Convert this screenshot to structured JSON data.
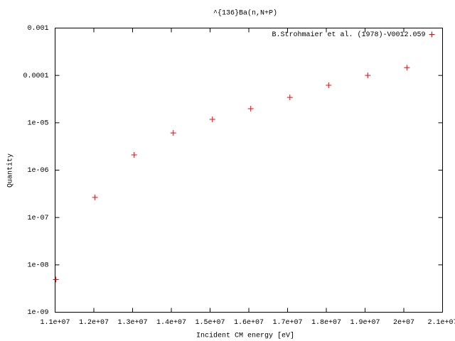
{
  "chart_data": {
    "type": "scatter",
    "title": "^{136}Ba(n,N+P)",
    "x_label": "Incident CM energy [eV]",
    "y_label": "Quantity",
    "log_y": true,
    "legend_position": "top-right",
    "xlim": [
      11000000,
      21000000
    ],
    "ylim": [
      1e-09,
      0.001
    ],
    "xticks": [
      {
        "value": 11000000,
        "label": "1.1e+07"
      },
      {
        "value": 12000000,
        "label": "1.2e+07"
      },
      {
        "value": 13000000,
        "label": "1.3e+07"
      },
      {
        "value": 14000000,
        "label": "1.4e+07"
      },
      {
        "value": 15000000,
        "label": "1.5e+07"
      },
      {
        "value": 16000000,
        "label": "1.6e+07"
      },
      {
        "value": 17000000,
        "label": "1.7e+07"
      },
      {
        "value": 18000000,
        "label": "1.8e+07"
      },
      {
        "value": 19000000,
        "label": "1.9e+07"
      },
      {
        "value": 20000000,
        "label": "2e+07"
      },
      {
        "value": 21000000,
        "label": "2.1e+07"
      }
    ],
    "yticks": [
      {
        "value": 1e-09,
        "label": "1e-09"
      },
      {
        "value": 1e-08,
        "label": "1e-08"
      },
      {
        "value": 1e-07,
        "label": "1e-07"
      },
      {
        "value": 1e-06,
        "label": "1e-06"
      },
      {
        "value": 1e-05,
        "label": "1e-05"
      },
      0.0001,
      0.001
    ],
    "series": [
      {
        "name": "B.Strohmaier et al. (1978)-V0012.059",
        "color": "#ff0000",
        "x": [
          11020000,
          12030000,
          13040000,
          14050000,
          15060000,
          16050000,
          17060000,
          18060000,
          19070000,
          20080000
        ],
        "values": [
          4.9e-09,
          2.66e-07,
          2.1e-06,
          6.1e-06,
          1.18e-05,
          1.98e-05,
          3.43e-05,
          6.2e-05,
          0.0001,
          0.000146
        ]
      }
    ]
  }
}
